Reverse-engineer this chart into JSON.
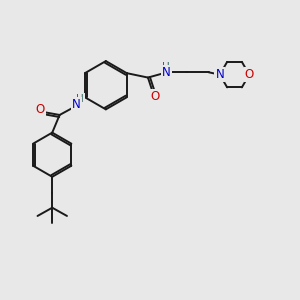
{
  "bg_color": "#e8e8e8",
  "bond_color": "#1a1a1a",
  "bond_width": 1.4,
  "atom_colors": {
    "N": "#0000cc",
    "O": "#cc0000",
    "NH_color": "#336666"
  },
  "font_size": 8.5,
  "fig_size": [
    3.0,
    3.0
  ],
  "dpi": 100
}
